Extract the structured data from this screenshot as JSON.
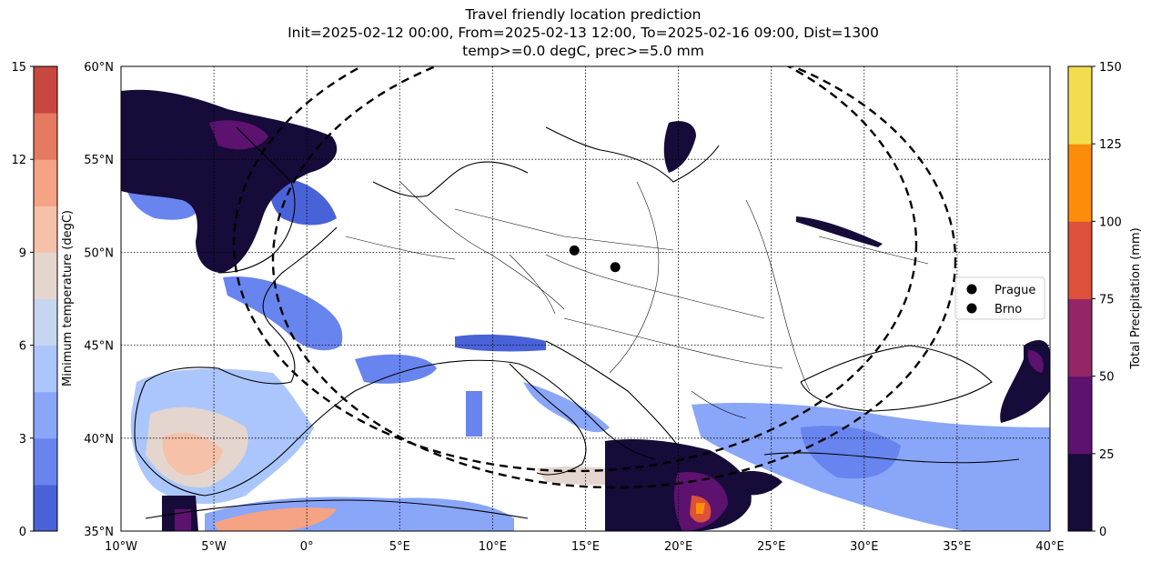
{
  "chart_data": {
    "type": "heatmap",
    "title": "Travel friendly location prediction",
    "subtitle_line1": "Init=2025-02-12 00:00, From=2025-02-13 12:00, To=2025-02-16 09:00, Dist=1300",
    "subtitle_line2": "temp>=0.0 degC, prec>=5.0 mm",
    "map_extent": {
      "lon": [
        -10,
        40
      ],
      "lat": [
        35,
        60
      ]
    },
    "lon_ticks": [
      "10°W",
      "5°W",
      "0°",
      "5°E",
      "10°E",
      "15°E",
      "20°E",
      "25°E",
      "30°E",
      "35°E",
      "40°E"
    ],
    "lon_values": [
      -10,
      -5,
      0,
      5,
      10,
      15,
      20,
      25,
      30,
      35,
      40
    ],
    "lat_ticks": [
      "35°N",
      "40°N",
      "45°N",
      "50°N",
      "55°N",
      "60°N"
    ],
    "lat_values": [
      35,
      40,
      45,
      50,
      55,
      60
    ],
    "grid": true,
    "locations": [
      {
        "name": "Prague",
        "lon": 14.4,
        "lat": 50.1
      },
      {
        "name": "Brno",
        "lon": 16.6,
        "lat": 49.2
      }
    ],
    "legend": {
      "placement": "right",
      "labels": [
        "Prague",
        "Brno"
      ]
    },
    "distance_circles_km": 1300,
    "temperature_colorbar": {
      "label": "Minimum temperature (degC)",
      "ticks": [
        "0",
        "3",
        "6",
        "9",
        "12",
        "15"
      ],
      "tick_values": [
        0,
        3,
        6,
        9,
        12,
        15
      ],
      "range": [
        0,
        15
      ],
      "colors": [
        "#4a62d8",
        "#6884ee",
        "#8aa6f9",
        "#aac6fd",
        "#c7d6f0",
        "#e4d6cf",
        "#f5c1a9",
        "#f5a285",
        "#e67a61",
        "#c94741"
      ]
    },
    "precipitation_colorbar": {
      "label": "Total Precipitation (mm)",
      "ticks": [
        "0",
        "25",
        "50",
        "75",
        "100",
        "125",
        "150"
      ],
      "tick_values": [
        0,
        25,
        50,
        75,
        100,
        125,
        150
      ],
      "range": [
        0,
        150
      ],
      "colors": [
        "#160b39",
        "#5c126e",
        "#932667",
        "#dd513a",
        "#fb8d0a",
        "#f3dd4f"
      ]
    }
  }
}
